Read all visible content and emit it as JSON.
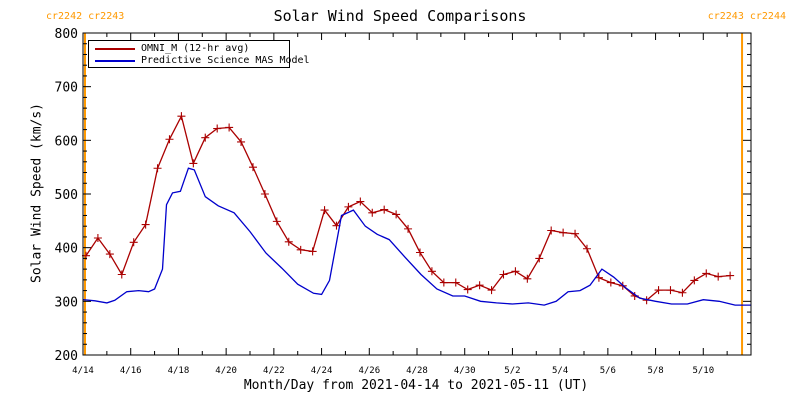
{
  "carrington": {
    "left": "cr2242 cr2243",
    "right": "cr2243 cr2244",
    "color": "#ff9900"
  },
  "chart_data": {
    "type": "line",
    "title": "Solar Wind Speed Comparisons",
    "xlabel": "Month/Day from 2021-04-14 to 2021-05-11 (UT)",
    "ylabel": "Solar Wind Speed (km/s)",
    "xlim": [
      "2021-04-14",
      "2021-05-12"
    ],
    "ylim": [
      200,
      800
    ],
    "yticks": [
      200,
      300,
      400,
      500,
      600,
      700,
      800
    ],
    "xticks": [
      {
        "date": "2021-04-14",
        "label": "4/14"
      },
      {
        "date": "2021-04-16",
        "label": "4/16"
      },
      {
        "date": "2021-04-18",
        "label": "4/18"
      },
      {
        "date": "2021-04-20",
        "label": "4/20"
      },
      {
        "date": "2021-04-22",
        "label": "4/22"
      },
      {
        "date": "2021-04-24",
        "label": "4/24"
      },
      {
        "date": "2021-04-26",
        "label": "4/26"
      },
      {
        "date": "2021-04-28",
        "label": "4/28"
      },
      {
        "date": "2021-04-30",
        "label": "4/30"
      },
      {
        "date": "2021-05-02",
        "label": "5/2"
      },
      {
        "date": "2021-05-04",
        "label": "5/4"
      },
      {
        "date": "2021-05-06",
        "label": "5/6"
      },
      {
        "date": "2021-05-08",
        "label": "5/8"
      },
      {
        "date": "2021-05-10",
        "label": "5/10"
      }
    ],
    "carrington_boundaries": [
      "2021-04-14T02:00",
      "2021-05-11T15:00"
    ],
    "legend": "top-left",
    "grid": false,
    "series": [
      {
        "name": "OMNI_M (12-hr avg)",
        "color": "#aa0000",
        "marker": "plus",
        "points": [
          [
            "2021-04-14T03:00",
            385
          ],
          [
            "2021-04-14T15:00",
            418
          ],
          [
            "2021-04-15T03:00",
            388
          ],
          [
            "2021-04-15T15:00",
            350
          ],
          [
            "2021-04-16T03:00",
            410
          ],
          [
            "2021-04-16T15:00",
            443
          ],
          [
            "2021-04-17T03:00",
            548
          ],
          [
            "2021-04-17T15:00",
            602
          ],
          [
            "2021-04-18T03:00",
            645
          ],
          [
            "2021-04-18T15:00",
            557
          ],
          [
            "2021-04-19T03:00",
            605
          ],
          [
            "2021-04-19T15:00",
            622
          ],
          [
            "2021-04-20T03:00",
            624
          ],
          [
            "2021-04-20T15:00",
            597
          ],
          [
            "2021-04-21T03:00",
            550
          ],
          [
            "2021-04-21T15:00",
            500
          ],
          [
            "2021-04-22T03:00",
            449
          ],
          [
            "2021-04-22T15:00",
            411
          ],
          [
            "2021-04-23T03:00",
            396
          ],
          [
            "2021-04-23T15:00",
            393
          ],
          [
            "2021-04-24T03:00",
            470
          ],
          [
            "2021-04-24T15:00",
            441
          ],
          [
            "2021-04-25T03:00",
            476
          ],
          [
            "2021-04-25T15:00",
            486
          ],
          [
            "2021-04-26T03:00",
            465
          ],
          [
            "2021-04-26T15:00",
            471
          ],
          [
            "2021-04-27T03:00",
            462
          ],
          [
            "2021-04-27T15:00",
            435
          ],
          [
            "2021-04-28T03:00",
            391
          ],
          [
            "2021-04-28T15:00",
            356
          ],
          [
            "2021-04-29T03:00",
            335
          ],
          [
            "2021-04-29T15:00",
            335
          ],
          [
            "2021-04-30T03:00",
            322
          ],
          [
            "2021-04-30T15:00",
            330
          ],
          [
            "2021-05-01T03:00",
            321
          ],
          [
            "2021-05-01T15:00",
            350
          ],
          [
            "2021-05-02T03:00",
            356
          ],
          [
            "2021-05-02T15:00",
            342
          ],
          [
            "2021-05-03T03:00",
            380
          ],
          [
            "2021-05-03T15:00",
            432
          ],
          [
            "2021-05-04T03:00",
            428
          ],
          [
            "2021-05-04T15:00",
            426
          ],
          [
            "2021-05-05T03:00",
            398
          ],
          [
            "2021-05-05T15:00",
            344
          ],
          [
            "2021-05-06T03:00",
            335
          ],
          [
            "2021-05-06T15:00",
            329
          ],
          [
            "2021-05-07T03:00",
            310
          ],
          [
            "2021-05-07T15:00",
            302
          ],
          [
            "2021-05-08T03:00",
            321
          ],
          [
            "2021-05-08T15:00",
            321
          ],
          [
            "2021-05-09T03:00",
            316
          ],
          [
            "2021-05-09T15:00",
            339
          ],
          [
            "2021-05-10T03:00",
            352
          ],
          [
            "2021-05-10T15:00",
            346
          ],
          [
            "2021-05-11T03:00",
            348
          ]
        ]
      },
      {
        "name": "Predictive Science MAS Model",
        "color": "#0000cc",
        "points": [
          [
            "2021-04-14T00:00",
            303
          ],
          [
            "2021-04-14T12:00",
            301
          ],
          [
            "2021-04-15T00:00",
            297
          ],
          [
            "2021-04-15T08:00",
            302
          ],
          [
            "2021-04-15T20:00",
            318
          ],
          [
            "2021-04-16T08:00",
            320
          ],
          [
            "2021-04-16T18:00",
            318
          ],
          [
            "2021-04-17T00:00",
            323
          ],
          [
            "2021-04-17T08:00",
            360
          ],
          [
            "2021-04-17T12:00",
            480
          ],
          [
            "2021-04-17T18:00",
            502
          ],
          [
            "2021-04-18T02:00",
            505
          ],
          [
            "2021-04-18T10:00",
            548
          ],
          [
            "2021-04-18T16:00",
            545
          ],
          [
            "2021-04-19T03:00",
            495
          ],
          [
            "2021-04-19T16:00",
            478
          ],
          [
            "2021-04-20T08:00",
            465
          ],
          [
            "2021-04-21T00:00",
            430
          ],
          [
            "2021-04-21T16:00",
            390
          ],
          [
            "2021-04-22T08:00",
            362
          ],
          [
            "2021-04-23T00:00",
            332
          ],
          [
            "2021-04-23T16:00",
            315
          ],
          [
            "2021-04-24T00:00",
            313
          ],
          [
            "2021-04-24T08:00",
            339
          ],
          [
            "2021-04-24T20:00",
            460
          ],
          [
            "2021-04-25T08:00",
            470
          ],
          [
            "2021-04-25T20:00",
            440
          ],
          [
            "2021-04-26T08:00",
            425
          ],
          [
            "2021-04-26T20:00",
            415
          ],
          [
            "2021-04-27T12:00",
            382
          ],
          [
            "2021-04-28T04:00",
            350
          ],
          [
            "2021-04-28T20:00",
            323
          ],
          [
            "2021-04-29T12:00",
            310
          ],
          [
            "2021-04-30T00:00",
            310
          ],
          [
            "2021-04-30T16:00",
            300
          ],
          [
            "2021-05-01T08:00",
            297
          ],
          [
            "2021-05-02T00:00",
            295
          ],
          [
            "2021-05-02T16:00",
            297
          ],
          [
            "2021-05-03T08:00",
            293
          ],
          [
            "2021-05-03T20:00",
            300
          ],
          [
            "2021-05-04T08:00",
            318
          ],
          [
            "2021-05-04T20:00",
            320
          ],
          [
            "2021-05-05T06:00",
            330
          ],
          [
            "2021-05-05T18:00",
            360
          ],
          [
            "2021-05-06T06:00",
            345
          ],
          [
            "2021-05-06T18:00",
            325
          ],
          [
            "2021-05-07T08:00",
            306
          ],
          [
            "2021-05-08T00:00",
            300
          ],
          [
            "2021-05-08T16:00",
            295
          ],
          [
            "2021-05-09T08:00",
            295
          ],
          [
            "2021-05-10T00:00",
            303
          ],
          [
            "2021-05-10T16:00",
            300
          ],
          [
            "2021-05-11T08:00",
            293
          ],
          [
            "2021-05-12T00:00",
            293
          ]
        ]
      }
    ]
  }
}
